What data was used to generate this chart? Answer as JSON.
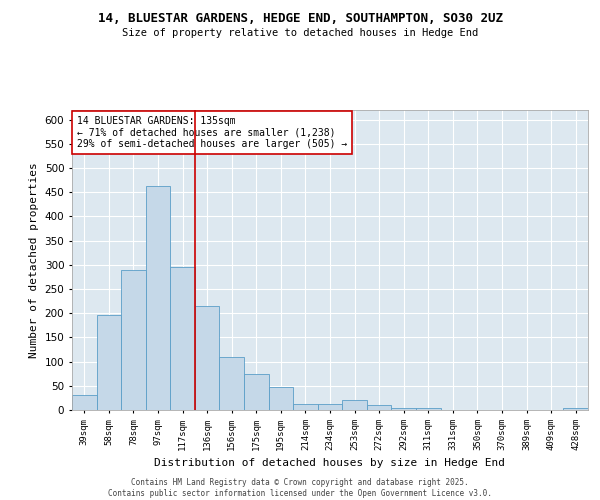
{
  "title_line1": "14, BLUESTAR GARDENS, HEDGE END, SOUTHAMPTON, SO30 2UZ",
  "title_line2": "Size of property relative to detached houses in Hedge End",
  "xlabel": "Distribution of detached houses by size in Hedge End",
  "ylabel": "Number of detached properties",
  "categories": [
    "39sqm",
    "58sqm",
    "78sqm",
    "97sqm",
    "117sqm",
    "136sqm",
    "156sqm",
    "175sqm",
    "195sqm",
    "214sqm",
    "234sqm",
    "253sqm",
    "272sqm",
    "292sqm",
    "311sqm",
    "331sqm",
    "350sqm",
    "370sqm",
    "389sqm",
    "409sqm",
    "428sqm"
  ],
  "values": [
    30,
    197,
    290,
    462,
    295,
    215,
    110,
    75,
    47,
    13,
    12,
    20,
    10,
    5,
    5,
    0,
    0,
    0,
    0,
    0,
    5
  ],
  "bar_color": "#c5d8e8",
  "bar_edge_color": "#5a9ec8",
  "vline_x": 5.0,
  "vline_color": "#cc0000",
  "annotation_text": "14 BLUESTAR GARDENS: 135sqm\n← 71% of detached houses are smaller (1,238)\n29% of semi-detached houses are larger (505) →",
  "annotation_box_color": "#ffffff",
  "annotation_box_edge_color": "#cc0000",
  "ylim": [
    0,
    620
  ],
  "background_color": "#dde8f0",
  "grid_color": "#ffffff",
  "fig_background": "#ffffff",
  "footer_line1": "Contains HM Land Registry data © Crown copyright and database right 2025.",
  "footer_line2": "Contains public sector information licensed under the Open Government Licence v3.0."
}
